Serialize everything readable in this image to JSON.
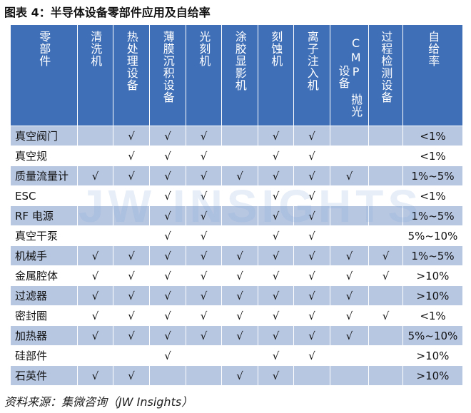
{
  "title": "图表 4：半导体设备零部件应用及自给率",
  "headers": [
    "零部件",
    "清洗机",
    "热处理设备",
    "薄膜沉积设备",
    "光刻机",
    "涂胶显影机",
    "刻蚀机",
    "离子注入机",
    "CMP 抛光设备",
    "过程检测设备",
    "自给率"
  ],
  "rows": [
    {
      "name": "真空阀门",
      "marks": [
        "",
        "√",
        "√",
        "√",
        "",
        "√",
        "√",
        "",
        ""
      ],
      "rate": "<1%"
    },
    {
      "name": "真空规",
      "marks": [
        "",
        "√",
        "√",
        "√",
        "",
        "√",
        "√",
        "",
        ""
      ],
      "rate": "<1%"
    },
    {
      "name": "质量流量计",
      "marks": [
        "√",
        "√",
        "√",
        "√",
        "√",
        "√",
        "√",
        "√",
        ""
      ],
      "rate": "1%~5%"
    },
    {
      "name": "ESC",
      "marks": [
        "",
        "",
        "√",
        "√",
        "",
        "√",
        "√",
        "",
        ""
      ],
      "rate": "<1%"
    },
    {
      "name": "RF 电源",
      "marks": [
        "",
        "",
        "√",
        "√",
        "",
        "√",
        "√",
        "",
        ""
      ],
      "rate": "1%~5%"
    },
    {
      "name": "真空干泵",
      "marks": [
        "",
        "",
        "√",
        "√",
        "",
        "√",
        "√",
        "",
        ""
      ],
      "rate": "5%~10%"
    },
    {
      "name": "机械手",
      "marks": [
        "√",
        "√",
        "√",
        "√",
        "√",
        "√",
        "√",
        "√",
        "√"
      ],
      "rate": "1%~5%"
    },
    {
      "name": "金属腔体",
      "marks": [
        "√",
        "√",
        "√",
        "√",
        "√",
        "√",
        "√",
        "√",
        "√"
      ],
      "rate": ">10%"
    },
    {
      "name": "过滤器",
      "marks": [
        "√",
        "√",
        "√",
        "√",
        "√",
        "√",
        "√",
        "√",
        ""
      ],
      "rate": ">10%"
    },
    {
      "name": "密封圈",
      "marks": [
        "√",
        "√",
        "√",
        "√",
        "√",
        "√",
        "√",
        "√",
        "√"
      ],
      "rate": "<1%"
    },
    {
      "name": "加热器",
      "marks": [
        "√",
        "√",
        "√",
        "√",
        "√",
        "√",
        "√",
        "√",
        ""
      ],
      "rate": "5%~10%"
    },
    {
      "name": "硅部件",
      "marks": [
        "",
        "",
        "√",
        "",
        "",
        "√",
        "√",
        "",
        ""
      ],
      "rate": ">10%"
    },
    {
      "name": "石英件",
      "marks": [
        "√",
        "√",
        "",
        "",
        "√",
        "√",
        "",
        "",
        ""
      ],
      "rate": ">10%"
    }
  ],
  "watermark": "JW INSIGHTS",
  "source": "资料来源：集微咨询（JW Insights）",
  "colors": {
    "header_bg": "#3f6fb7",
    "row_alt": "#b7c7e2"
  }
}
